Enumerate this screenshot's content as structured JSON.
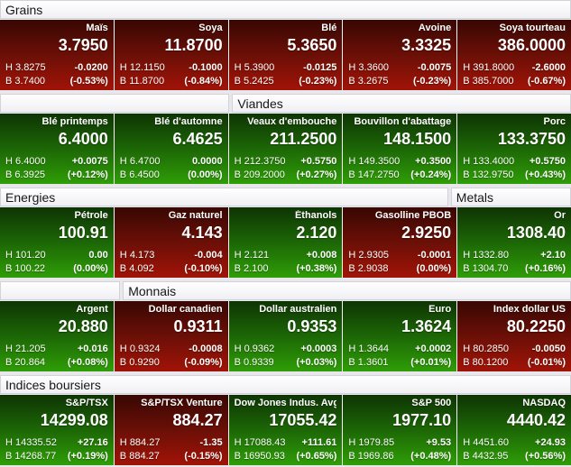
{
  "labels": {
    "high_prefix": "H",
    "low_prefix": "B"
  },
  "colors": {
    "page_background": "#e7e7ec",
    "tile_text": "#ffffff",
    "header_text": "#17171a",
    "up_gradient_top": "#0e3404",
    "up_gradient_bottom": "#2f9e07",
    "down_gradient_top": "#380703",
    "down_gradient_bottom": "#a21307"
  },
  "blocks": [
    {
      "headers": [
        {
          "label": "Grains",
          "span": 5
        }
      ],
      "tiles": [
        {
          "name": "Maïs",
          "value": "3.7950",
          "high": "3.8275",
          "change": "-0.0200",
          "low": "3.7400",
          "pct": "(-0.53%)",
          "trend": "down"
        },
        {
          "name": "Soya",
          "value": "11.8700",
          "high": "12.1150",
          "change": "-0.1000",
          "low": "11.8700",
          "pct": "(-0.84%)",
          "trend": "down"
        },
        {
          "name": "Blé",
          "value": "5.3650",
          "high": "5.3900",
          "change": "-0.0125",
          "low": "5.2425",
          "pct": "(-0.23%)",
          "trend": "down"
        },
        {
          "name": "Avoine",
          "value": "3.3325",
          "high": "3.3600",
          "change": "-0.0075",
          "low": "3.2675",
          "pct": "(-0.23%)",
          "trend": "down"
        },
        {
          "name": "Soya tourteau",
          "value": "386.0000",
          "high": "391.8000",
          "change": "-2.6000",
          "low": "385.7000",
          "pct": "(-0.67%)",
          "trend": "down"
        }
      ]
    },
    {
      "headers": [
        {
          "label": "",
          "span": 2
        },
        {
          "label": "Viandes",
          "span": 3
        }
      ],
      "tiles": [
        {
          "name": "Blé printemps",
          "value": "6.4000",
          "high": "6.4000",
          "change": "+0.0075",
          "low": "6.3925",
          "pct": "(+0.12%)",
          "trend": "up"
        },
        {
          "name": "Blé d'automne",
          "value": "6.4625",
          "high": "6.4700",
          "change": "0.0000",
          "low": "6.4500",
          "pct": "(0.00%)",
          "trend": "up"
        },
        {
          "name": "Veaux d'embouche",
          "value": "211.2500",
          "high": "212.3750",
          "change": "+0.5750",
          "low": "209.2000",
          "pct": "(+0.27%)",
          "trend": "up"
        },
        {
          "name": "Bouvillon d'abattage",
          "value": "148.1500",
          "high": "149.3500",
          "change": "+0.3500",
          "low": "147.2750",
          "pct": "(+0.24%)",
          "trend": "up"
        },
        {
          "name": "Porc",
          "value": "133.3750",
          "high": "133.4000",
          "change": "+0.5750",
          "low": "132.9750",
          "pct": "(+0.43%)",
          "trend": "up"
        }
      ]
    },
    {
      "headers": [
        {
          "label": "Energies",
          "span": 4
        },
        {
          "label": "Metals",
          "span": 1
        }
      ],
      "tiles": [
        {
          "name": "Pétrole",
          "value": "100.91",
          "high": "101.20",
          "change": "0.00",
          "low": "100.22",
          "pct": "(0.00%)",
          "trend": "up"
        },
        {
          "name": "Gaz naturel",
          "value": "4.143",
          "high": "4.173",
          "change": "-0.004",
          "low": "4.092",
          "pct": "(-0.10%)",
          "trend": "down"
        },
        {
          "name": "Éthanols",
          "value": "2.120",
          "high": "2.121",
          "change": "+0.008",
          "low": "2.100",
          "pct": "(+0.38%)",
          "trend": "up"
        },
        {
          "name": "Gasolline PBOB",
          "value": "2.9250",
          "high": "2.9305",
          "change": "-0.0001",
          "low": "2.9038",
          "pct": "(0.00%)",
          "trend": "down"
        },
        {
          "name": "Or",
          "value": "1308.40",
          "high": "1332.80",
          "change": "+2.10",
          "low": "1304.70",
          "pct": "(+0.16%)",
          "trend": "up"
        }
      ]
    },
    {
      "headers": [
        {
          "label": "",
          "span": 1
        },
        {
          "label": "Monnais",
          "span": 4
        }
      ],
      "tiles": [
        {
          "name": "Argent",
          "value": "20.880",
          "high": "21.205",
          "change": "+0.016",
          "low": "20.864",
          "pct": "(+0.08%)",
          "trend": "up"
        },
        {
          "name": "Dollar canadien",
          "value": "0.9311",
          "high": "0.9324",
          "change": "-0.0008",
          "low": "0.9290",
          "pct": "(-0.09%)",
          "trend": "down"
        },
        {
          "name": "Dollar australien",
          "value": "0.9353",
          "high": "0.9362",
          "change": "+0.0003",
          "low": "0.9339",
          "pct": "(+0.03%)",
          "trend": "up"
        },
        {
          "name": "Euro",
          "value": "1.3624",
          "high": "1.3644",
          "change": "+0.0002",
          "low": "1.3601",
          "pct": "(+0.01%)",
          "trend": "up"
        },
        {
          "name": "Index dollar US",
          "value": "80.2250",
          "high": "80.2850",
          "change": "-0.0050",
          "low": "80.1200",
          "pct": "(-0.01%)",
          "trend": "down"
        }
      ]
    },
    {
      "headers": [
        {
          "label": "Indices boursiers",
          "span": 5
        }
      ],
      "tiles": [
        {
          "name": "S&P/TSX",
          "value": "14299.08",
          "high": "14335.52",
          "change": "+27.16",
          "low": "14268.77",
          "pct": "(+0.19%)",
          "trend": "up"
        },
        {
          "name": "S&P/TSX Venture",
          "value": "884.27",
          "high": "884.27",
          "change": "-1.35",
          "low": "884.27",
          "pct": "(-0.15%)",
          "trend": "down"
        },
        {
          "name": "Dow Jones Indus. Avg.",
          "value": "17055.42",
          "high": "17088.43",
          "change": "+111.61",
          "low": "16950.93",
          "pct": "(+0.65%)",
          "trend": "up"
        },
        {
          "name": "S&P 500",
          "value": "1977.10",
          "high": "1979.85",
          "change": "+9.53",
          "low": "1969.86",
          "pct": "(+0.48%)",
          "trend": "up"
        },
        {
          "name": "NASDAQ",
          "value": "4440.42",
          "high": "4451.60",
          "change": "+24.93",
          "low": "4432.95",
          "pct": "(+0.56%)",
          "trend": "up"
        }
      ]
    }
  ]
}
